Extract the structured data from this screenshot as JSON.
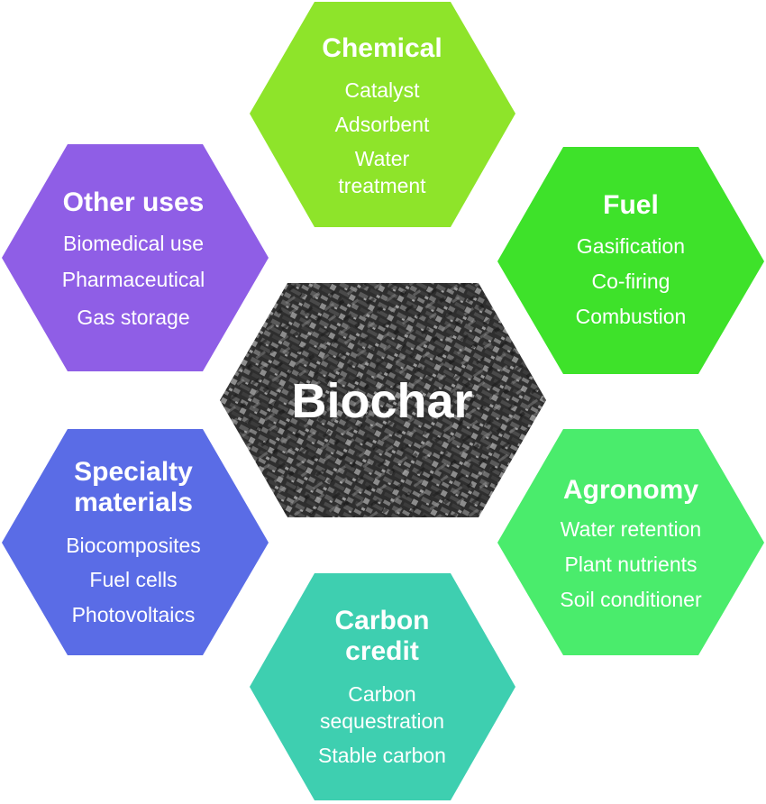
{
  "center": {
    "title": "Biochar"
  },
  "hexagons": {
    "chemical": {
      "title": "Chemical",
      "items": [
        "Catalyst",
        "Adsorbent",
        "Water",
        "treatment"
      ],
      "color": "#8ee42a"
    },
    "fuel": {
      "title": "Fuel",
      "items": [
        "Gasification",
        "Co-firing",
        "Combustion"
      ],
      "color": "#3ee22a"
    },
    "agronomy": {
      "title": "Agronomy",
      "items": [
        "Water retention",
        "Plant nutrients",
        "Soil conditioner"
      ],
      "color": "#4aec6c"
    },
    "carbon_credit": {
      "title_lines": [
        "Carbon",
        "credit"
      ],
      "items": [
        "Carbon",
        "sequestration",
        "Stable carbon"
      ],
      "color": "#3ecfb0"
    },
    "specialty": {
      "title_lines": [
        "Specialty",
        "materials"
      ],
      "items": [
        "Biocomposites",
        "Fuel cells",
        "Photovoltaics"
      ],
      "color": "#5a6ce6"
    },
    "other": {
      "title": "Other uses",
      "items": [
        "Biomedical use",
        "Pharmaceutical",
        "Gas storage"
      ],
      "color": "#8f5ee6"
    }
  }
}
